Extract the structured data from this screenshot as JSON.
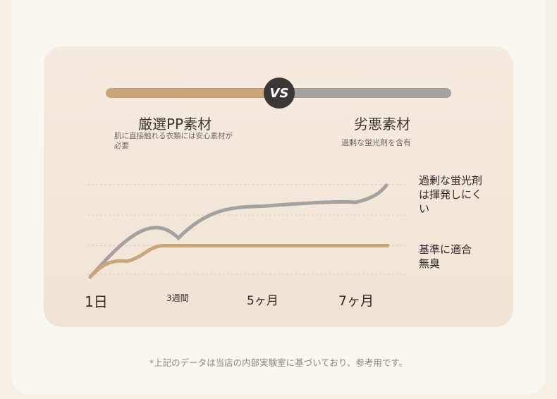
{
  "vs_label": "VS",
  "left": {
    "title": "厳選PP素材",
    "description": "肌に直接触れる衣類には安心素材が必要",
    "color": "#c9a57c"
  },
  "right": {
    "title": "劣悪素材",
    "description": "過剰な蛍光剤を含有",
    "color": "#a4a2a1"
  },
  "footnote": "*上記のデータは当店の内部実験室に基づいており、参考用です。",
  "chart_data": {
    "type": "line",
    "x": [
      "1日",
      "3週間",
      "5ヶ月",
      "7ヶ月"
    ],
    "ylim": [
      0,
      1
    ],
    "grid": true,
    "series": [
      {
        "annotation": "過剰な蛍光剤は揮発しにくい",
        "color": "#a4a2a1",
        "values": [
          0,
          0.52,
          0.76,
          0.83
        ]
      },
      {
        "annotation": "基準に適合 無臭",
        "color": "#c9a57c",
        "values": [
          0,
          0.18,
          0.33,
          0.33
        ]
      }
    ]
  }
}
